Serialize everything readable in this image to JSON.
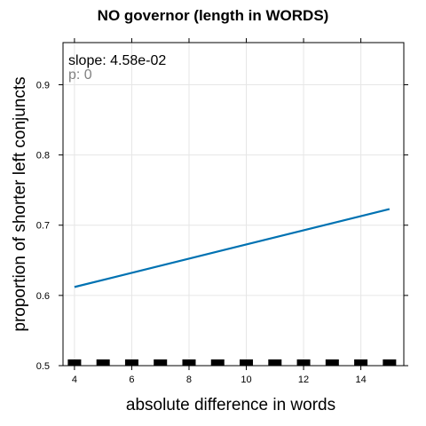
{
  "chart_data": {
    "type": "line",
    "title": "NO governor (length in WORDS)",
    "xlabel": "absolute difference in words",
    "ylabel": "proportion of shorter left conjuncts",
    "xlim": [
      3.6,
      15.5
    ],
    "ylim": [
      0.5,
      0.96
    ],
    "xticks": [
      4,
      6,
      8,
      10,
      12,
      14
    ],
    "yticks": [
      0.5,
      0.6,
      0.7,
      0.8,
      0.9
    ],
    "ytick_labels": [
      "0.5",
      "0.6",
      "0.7",
      "0.8",
      "0.9"
    ],
    "grid": true,
    "series": [
      {
        "x": [
          4,
          15
        ],
        "y": [
          0.612,
          0.723
        ],
        "color": "#0072b2"
      }
    ],
    "rug_x": [
      4,
      5,
      6,
      7,
      8,
      9,
      10,
      11,
      12,
      13,
      14,
      15
    ],
    "annotations": {
      "slope": "slope: 4.58e-02",
      "p": "p: 0"
    }
  }
}
